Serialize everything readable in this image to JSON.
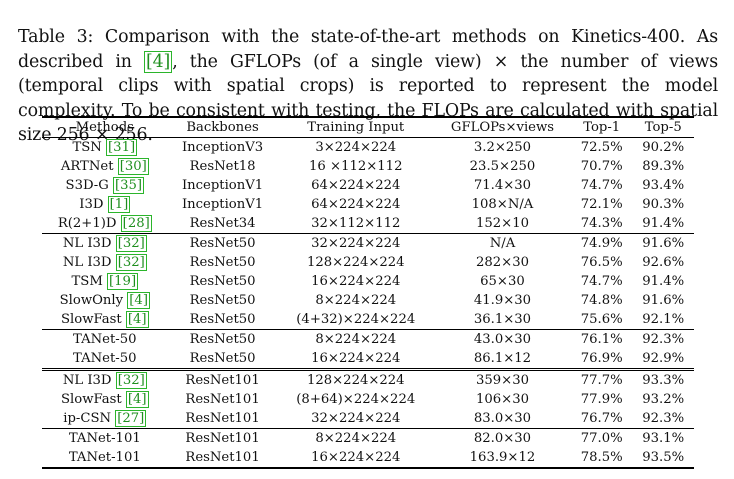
{
  "caption": {
    "p1": "Table 3: Comparison with the state-of-the-art methods on Kinetics-400. As described in ",
    "cite": "[4]",
    "p2": ", the GFLOPs (of a single view) × the number of views (temporal clips with spatial crops) is reported to represent the model complexity. To be consistent with testing, the FLOPs are calculated with spatial size 256 × 256."
  },
  "table": {
    "headers": [
      "Methods",
      "Backbones",
      "Training Input",
      "GFLOPs×views",
      "Top-1",
      "Top-5"
    ],
    "groups": [
      [
        {
          "method": "TSN ",
          "ref": "[31]",
          "backbone": "InceptionV3",
          "input": "3×224×224",
          "gflops": "3.2×250",
          "top1": "72.5%",
          "top5": "90.2%"
        },
        {
          "method": "ARTNet ",
          "ref": "[30]",
          "backbone": "ResNet18",
          "input": "16 ×112×112",
          "gflops": "23.5×250",
          "top1": "70.7%",
          "top5": "89.3%"
        },
        {
          "method": "S3D-G ",
          "ref": "[35]",
          "backbone": "InceptionV1",
          "input": "64×224×224",
          "gflops": "71.4×30",
          "top1": "74.7%",
          "top5": "93.4%"
        },
        {
          "method": "I3D ",
          "ref": "[1]",
          "backbone": "InceptionV1",
          "input": "64×224×224",
          "gflops": "108×N/A",
          "top1": "72.1%",
          "top5": "90.3%"
        },
        {
          "method": "R(2+1)D ",
          "ref": "[28]",
          "backbone": "ResNet34",
          "input": "32×112×112",
          "gflops": "152×10",
          "top1": "74.3%",
          "top5": "91.4%"
        }
      ],
      [
        {
          "method": "NL I3D ",
          "ref": "[32]",
          "backbone": "ResNet50",
          "input": "32×224×224",
          "gflops": "N/A",
          "top1": "74.9%",
          "top5": "91.6%"
        },
        {
          "method": "NL I3D ",
          "ref": "[32]",
          "backbone": "ResNet50",
          "input": "128×224×224",
          "gflops": "282×30",
          "top1": "76.5%",
          "top5": "92.6%"
        },
        {
          "method": "TSM ",
          "ref": "[19]",
          "backbone": "ResNet50",
          "input": "16×224×224",
          "gflops": "65×30",
          "top1": "74.7%",
          "top5": "91.4%"
        },
        {
          "method": "SlowOnly ",
          "ref": "[4]",
          "backbone": "ResNet50",
          "input": "8×224×224",
          "gflops": "41.9×30",
          "top1": "74.8%",
          "top5": "91.6%"
        },
        {
          "method": "SlowFast ",
          "ref": "[4]",
          "backbone": "ResNet50",
          "input": "(4+32)×224×224",
          "gflops": "36.1×30",
          "top1": "75.6%",
          "top5": "92.1%"
        }
      ],
      [
        {
          "method": "TANet-50",
          "ref": "",
          "backbone": "ResNet50",
          "input": "8×224×224",
          "gflops": "43.0×30",
          "top1": "76.1%",
          "top5": "92.3%"
        },
        {
          "method": "TANet-50",
          "ref": "",
          "backbone": "ResNet50",
          "input": "16×224×224",
          "gflops": "86.1×12",
          "top1": "76.9%",
          "top5": "92.9%"
        }
      ],
      [
        {
          "method": "NL I3D ",
          "ref": "[32]",
          "backbone": "ResNet101",
          "input": "128×224×224",
          "gflops": "359×30",
          "top1": "77.7%",
          "top5": "93.3%"
        },
        {
          "method": "SlowFast ",
          "ref": "[4]",
          "backbone": "ResNet101",
          "input": "(8+64)×224×224",
          "gflops": "106×30",
          "top1": "77.9%",
          "top5": "93.2%"
        },
        {
          "method": "ip-CSN ",
          "ref": "[27]",
          "backbone": "ResNet101",
          "input": "32×224×224",
          "gflops": "83.0×30",
          "top1": "76.7%",
          "top5": "92.3%"
        }
      ],
      [
        {
          "method": "TANet-101",
          "ref": "",
          "backbone": "ResNet101",
          "input": "8×224×224",
          "gflops": "82.0×30",
          "top1": "77.0%",
          "top5": "93.1%"
        },
        {
          "method": "TANet-101",
          "ref": "",
          "backbone": "ResNet101",
          "input": "16×224×224",
          "gflops": "163.9×12",
          "top1": "78.5%",
          "top5": "93.5%"
        }
      ]
    ]
  }
}
